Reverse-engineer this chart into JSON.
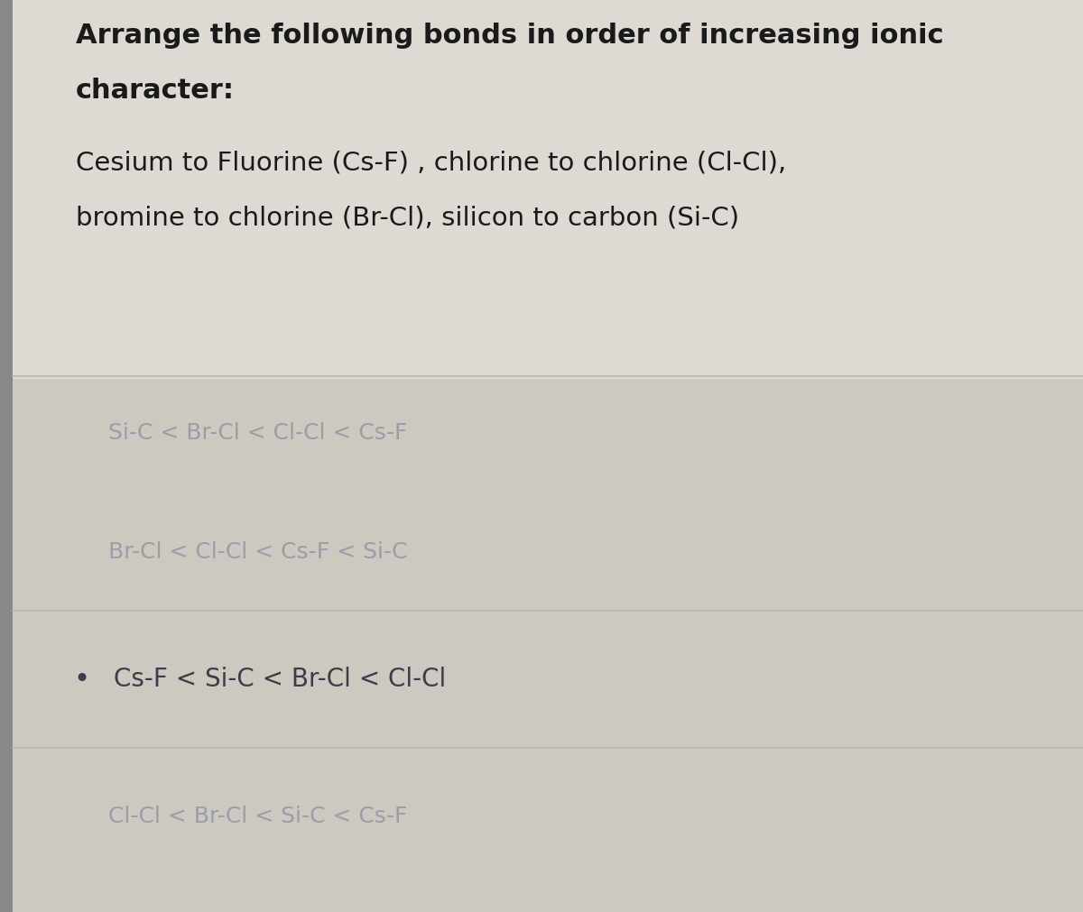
{
  "background_color": "#d8d4cc",
  "options_bg_color": "#cdc9c0",
  "figsize": [
    12.0,
    10.11
  ],
  "question_text_line1": "Arrange the following bonds in order of increasing ionic",
  "question_text_line2": "character:",
  "description_line1": "Cesium to Fluorine (Cs-F) , chlorine to chlorine (Cl-Cl),",
  "description_line2": "bromine to chlorine (Br-Cl), silicon to carbon (Si-C)",
  "options": [
    {
      "text": "Si-C < Br-Cl < Cl-Cl < Cs-F",
      "selected": false,
      "bullet": false,
      "color": "#9a9ea8",
      "fontsize": 18
    },
    {
      "text": "Br-Cl < Cl-Cl < Cs-F < Si-C",
      "selected": false,
      "bullet": false,
      "color": "#9a9ea8",
      "fontsize": 18
    },
    {
      "text": "Cs-F < Si-C < Br-Cl < Cl-Cl",
      "selected": true,
      "bullet": true,
      "color": "#3a3d4a",
      "fontsize": 20
    },
    {
      "text": "Cl-Cl < Br-Cl < Si-C < Cs-F",
      "selected": false,
      "bullet": false,
      "color": "#9a9ea8",
      "fontsize": 18
    }
  ],
  "divider_color": "#b8b4ac",
  "question_color": "#1a1a1a",
  "question_fontsize": 22,
  "description_fontsize": 21,
  "description_color": "#1a1a1a",
  "left_bar_color": "#888888",
  "left_bar_width": 0.012
}
